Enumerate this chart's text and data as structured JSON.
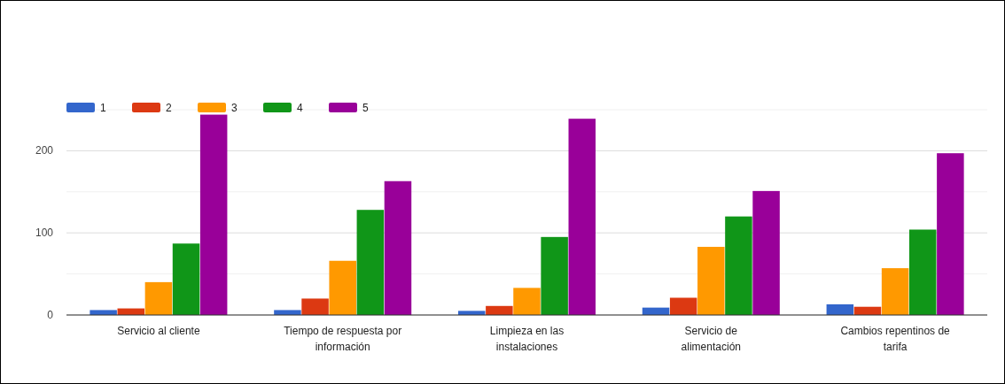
{
  "chart_data": {
    "type": "bar",
    "categories": [
      "Servicio al cliente",
      "Tiempo de respuesta por información",
      "Limpieza en las instalaciones",
      "Servicio de alimentación",
      "Cambios repentinos de tarifa"
    ],
    "series": [
      {
        "name": "1",
        "color": "#3366cc",
        "values": [
          6,
          6,
          5,
          9,
          13
        ]
      },
      {
        "name": "2",
        "color": "#dc3912",
        "values": [
          8,
          20,
          11,
          21,
          10
        ]
      },
      {
        "name": "3",
        "color": "#ff9900",
        "values": [
          40,
          66,
          33,
          83,
          57
        ]
      },
      {
        "name": "4",
        "color": "#109618",
        "values": [
          87,
          128,
          95,
          120,
          104
        ]
      },
      {
        "name": "5",
        "color": "#990099",
        "values": [
          244,
          163,
          239,
          151,
          197
        ]
      }
    ],
    "ylim": [
      0,
      250
    ],
    "yticks": [
      0,
      {
        "value": 50,
        "label": null
      },
      100,
      {
        "value": 150,
        "label": null
      },
      200,
      {
        "value": 250,
        "label": null
      }
    ],
    "grid": true,
    "legend": "top left"
  }
}
